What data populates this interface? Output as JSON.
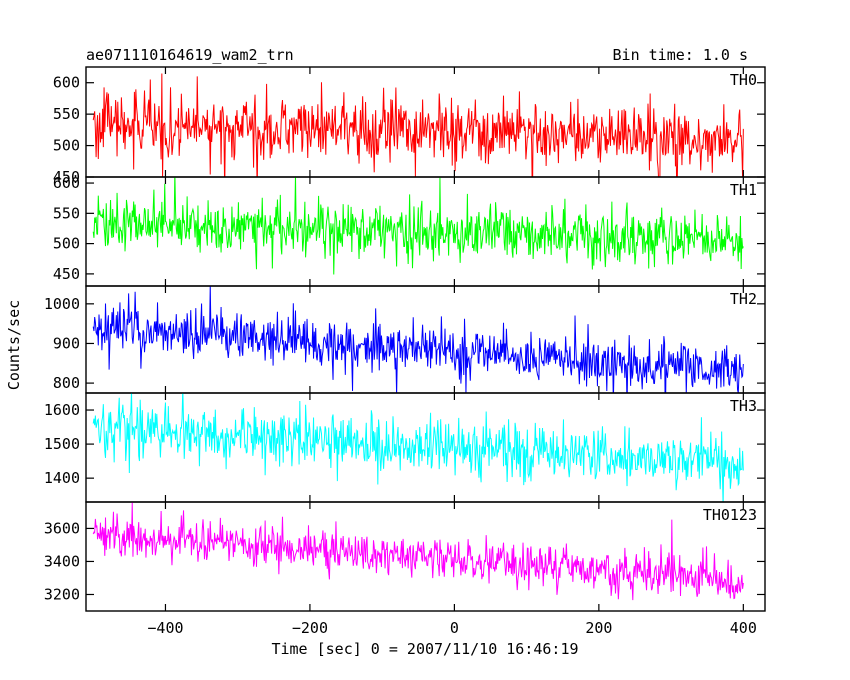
{
  "chart_data": {
    "type": "line",
    "title_left": "ae071110164619_wam2_trn",
    "title_right": "Bin time: 1.0 s",
    "xlabel": "Time [sec] 0 = 2007/11/10 16:46:19",
    "ylabel": "Counts/sec",
    "xlim": [
      -510,
      430
    ],
    "x_ticks": [
      -400,
      -200,
      0,
      200,
      400
    ],
    "x_range": [
      -500,
      400
    ],
    "bin_time_s": 1.0,
    "panels": [
      {
        "name": "TH0",
        "color": "#ff0000",
        "ylim": [
          450,
          625
        ],
        "y_ticks": [
          450,
          500,
          550,
          600
        ],
        "trend": {
          "start": 535,
          "end": 510
        },
        "noise_sd": 25
      },
      {
        "name": "TH1",
        "color": "#00ff00",
        "ylim": [
          430,
          610
        ],
        "y_ticks": [
          450,
          500,
          550,
          600
        ],
        "trend": {
          "start": 535,
          "end": 505
        },
        "noise_sd": 22
      },
      {
        "name": "TH2",
        "color": "#0000ff",
        "ylim": [
          775,
          1045
        ],
        "y_ticks": [
          800,
          900,
          1000
        ],
        "trend": {
          "start": 940,
          "end": 830
        },
        "noise_sd": 30
      },
      {
        "name": "TH3",
        "color": "#00ffff",
        "ylim": [
          1330,
          1650
        ],
        "y_ticks": [
          1400,
          1500,
          1600
        ],
        "trend": {
          "start": 1545,
          "end": 1440
        },
        "noise_sd": 40
      },
      {
        "name": "TH0123",
        "color": "#ff00ff",
        "ylim": [
          3100,
          3760
        ],
        "y_ticks": [
          3200,
          3400,
          3600
        ],
        "trend": {
          "start": 3570,
          "end": 3280
        },
        "noise_sd": 60
      }
    ]
  }
}
